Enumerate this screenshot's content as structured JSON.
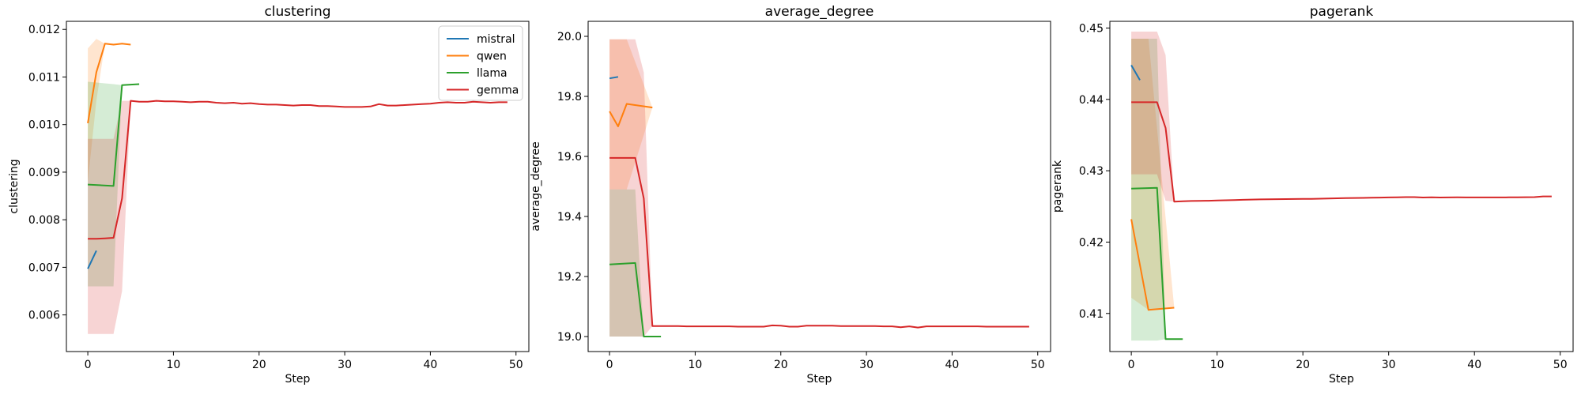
{
  "chart_data": [
    {
      "type": "line",
      "title": "clustering",
      "xlabel": "Step",
      "ylabel": "clustering",
      "xlim": [
        -2.5,
        51.5
      ],
      "ylim": [
        0.00523,
        0.01217
      ],
      "xticks": [
        0,
        10,
        20,
        30,
        40,
        50
      ],
      "xtick_labels": [
        "0",
        "10",
        "20",
        "30",
        "40",
        "50"
      ],
      "yticks": [
        0.006,
        0.007,
        0.008,
        0.009,
        0.01,
        0.011,
        0.012
      ],
      "ytick_labels": [
        "0.006",
        "0.007",
        "0.008",
        "0.009",
        "0.010",
        "0.011",
        "0.012"
      ],
      "legend": "upper right",
      "series": [
        {
          "name": "mistral",
          "color": "#1f77b4",
          "x": [
            0,
            1
          ],
          "y": [
            0.00697,
            0.00735
          ],
          "band_upper": [],
          "band_lower": []
        },
        {
          "name": "qwen",
          "color": "#ff7f0e",
          "x": [
            0,
            1,
            2,
            3,
            4,
            5
          ],
          "y": [
            0.01003,
            0.0111,
            0.0117,
            0.01168,
            0.0117,
            0.01168
          ],
          "band_upper": [
            0.0116,
            0.0118,
            0.0117,
            0.0117,
            0.0117,
            0.01168
          ],
          "band_lower": [
            0.0088,
            0.0105,
            0.0117,
            0.01168,
            0.0117,
            0.01168
          ]
        },
        {
          "name": "llama",
          "color": "#2ca02c",
          "x": [
            0,
            3,
            4,
            6
          ],
          "y": [
            0.00874,
            0.00871,
            0.01083,
            0.01085
          ],
          "band_upper": [
            0.0109,
            0.01085,
            0.01083,
            0.01085
          ],
          "band_lower": [
            0.0066,
            0.0066,
            0.01083,
            0.01085
          ]
        },
        {
          "name": "gemma",
          "color": "#d62728",
          "x": [
            0,
            1,
            2,
            3,
            4,
            5,
            6,
            7,
            8,
            9,
            10,
            11,
            12,
            13,
            14,
            15,
            16,
            17,
            18,
            19,
            20,
            21,
            22,
            23,
            24,
            25,
            26,
            27,
            28,
            29,
            30,
            31,
            32,
            33,
            34,
            35,
            36,
            37,
            38,
            39,
            40,
            41,
            42,
            43,
            44,
            45,
            46,
            47,
            48,
            49
          ],
          "y": [
            0.0076,
            0.0076,
            0.00761,
            0.00762,
            0.00845,
            0.0105,
            0.01048,
            0.01048,
            0.0105,
            0.01049,
            0.01049,
            0.01048,
            0.01047,
            0.01048,
            0.01048,
            0.01046,
            0.01045,
            0.01046,
            0.01044,
            0.01045,
            0.01043,
            0.01042,
            0.01042,
            0.01041,
            0.0104,
            0.01041,
            0.01041,
            0.01039,
            0.01039,
            0.01038,
            0.01037,
            0.01037,
            0.01037,
            0.01038,
            0.01043,
            0.0104,
            0.0104,
            0.01041,
            0.01042,
            0.01043,
            0.01044,
            0.01046,
            0.01047,
            0.01046,
            0.01046,
            0.01048,
            0.01047,
            0.01046,
            0.01047,
            0.01047
          ],
          "band_upper": [
            0.0097,
            0.0097,
            0.0097,
            0.0097,
            0.0105,
            0.0105
          ],
          "band_lower": [
            0.0056,
            0.0056,
            0.0056,
            0.0056,
            0.0065,
            0.0105
          ]
        }
      ]
    },
    {
      "type": "line",
      "title": "average_degree",
      "xlabel": "Step",
      "ylabel": "average_degree",
      "xlim": [
        -2.5,
        51.5
      ],
      "ylim": [
        18.95,
        20.05
      ],
      "xticks": [
        0,
        10,
        20,
        30,
        40,
        50
      ],
      "xtick_labels": [
        "0",
        "10",
        "20",
        "30",
        "40",
        "50"
      ],
      "yticks": [
        19.0,
        19.2,
        19.4,
        19.6,
        19.8,
        20.0
      ],
      "ytick_labels": [
        "19.0",
        "19.2",
        "19.4",
        "19.6",
        "19.8",
        "20.0"
      ],
      "series": [
        {
          "name": "mistral",
          "color": "#1f77b4",
          "x": [
            0,
            1
          ],
          "y": [
            19.86,
            19.865
          ],
          "band_upper": [],
          "band_lower": []
        },
        {
          "name": "qwen",
          "color": "#ff7f0e",
          "x": [
            0,
            1,
            2,
            5
          ],
          "y": [
            19.75,
            19.7,
            19.775,
            19.763
          ],
          "band_upper": [
            19.99,
            19.99,
            19.99,
            19.763
          ],
          "band_lower": [
            19.49,
            19.49,
            19.49,
            19.763
          ]
        },
        {
          "name": "llama",
          "color": "#2ca02c",
          "x": [
            0,
            3,
            4,
            6
          ],
          "y": [
            19.24,
            19.245,
            19.0,
            19.0
          ],
          "band_upper": [
            19.49,
            19.49,
            19.0,
            19.0
          ],
          "band_lower": [
            19.0,
            19.0,
            19.0,
            19.0
          ]
        },
        {
          "name": "gemma",
          "color": "#d62728",
          "x": [
            0,
            1,
            2,
            3,
            4,
            5,
            6,
            7,
            8,
            9,
            10,
            11,
            12,
            13,
            14,
            15,
            16,
            17,
            18,
            19,
            20,
            21,
            22,
            23,
            24,
            25,
            26,
            27,
            28,
            29,
            30,
            31,
            32,
            33,
            34,
            35,
            36,
            37,
            38,
            39,
            40,
            41,
            42,
            43,
            44,
            45,
            46,
            47,
            48,
            49
          ],
          "y": [
            19.595,
            19.595,
            19.595,
            19.595,
            19.46,
            19.035,
            19.035,
            19.035,
            19.035,
            19.034,
            19.034,
            19.034,
            19.034,
            19.034,
            19.034,
            19.033,
            19.033,
            19.033,
            19.033,
            19.037,
            19.036,
            19.033,
            19.033,
            19.036,
            19.036,
            19.036,
            19.036,
            19.035,
            19.035,
            19.035,
            19.035,
            19.035,
            19.034,
            19.034,
            19.031,
            19.034,
            19.03,
            19.034,
            19.034,
            19.034,
            19.034,
            19.034,
            19.034,
            19.034,
            19.033,
            19.033,
            19.033,
            19.033,
            19.033,
            19.033
          ],
          "band_upper": [
            19.99,
            19.99,
            19.99,
            19.99,
            19.88,
            19.035
          ],
          "band_lower": [
            19.0,
            19.0,
            19.0,
            19.0,
            19.0,
            19.035
          ]
        }
      ]
    },
    {
      "type": "line",
      "title": "pagerank",
      "xlabel": "Step",
      "ylabel": "pagerank",
      "xlim": [
        -2.5,
        51.5
      ],
      "ylim": [
        0.40466,
        0.45094
      ],
      "xticks": [
        0,
        10,
        20,
        30,
        40,
        50
      ],
      "xtick_labels": [
        "0",
        "10",
        "20",
        "30",
        "40",
        "50"
      ],
      "yticks": [
        0.41,
        0.42,
        0.43,
        0.44,
        0.45
      ],
      "ytick_labels": [
        "0.41",
        "0.42",
        "0.43",
        "0.44",
        "0.45"
      ],
      "series": [
        {
          "name": "mistral",
          "color": "#1f77b4",
          "x": [
            0,
            1
          ],
          "y": [
            0.4448,
            0.4427
          ],
          "band_upper": [],
          "band_lower": []
        },
        {
          "name": "qwen",
          "color": "#ff7f0e",
          "x": [
            0,
            2,
            5
          ],
          "y": [
            0.4232,
            0.4105,
            0.4108
          ],
          "band_upper": [
            0.4485,
            0.4485,
            0.4108
          ],
          "band_lower": [
            0.4122,
            0.4105,
            0.4108
          ]
        },
        {
          "name": "llama",
          "color": "#2ca02c",
          "x": [
            0,
            3,
            4,
            6
          ],
          "y": [
            0.4275,
            0.4276,
            0.4064,
            0.4064
          ],
          "band_upper": [
            0.4485,
            0.4485,
            0.4064,
            0.4064
          ],
          "band_lower": [
            0.4062,
            0.4062,
            0.4064,
            0.4064
          ]
        },
        {
          "name": "gemma",
          "color": "#d62728",
          "x": [
            0,
            1,
            2,
            3,
            4,
            5,
            6,
            7,
            8,
            9,
            10,
            11,
            12,
            13,
            14,
            15,
            16,
            17,
            18,
            19,
            20,
            21,
            22,
            23,
            24,
            25,
            26,
            27,
            28,
            29,
            30,
            31,
            32,
            33,
            34,
            35,
            36,
            37,
            38,
            39,
            40,
            41,
            42,
            43,
            44,
            45,
            46,
            47,
            48,
            49
          ],
          "y": [
            0.4396,
            0.4396,
            0.4396,
            0.4396,
            0.436,
            0.42567,
            0.42572,
            0.42576,
            0.42578,
            0.4258,
            0.42583,
            0.42586,
            0.4259,
            0.42593,
            0.42596,
            0.42598,
            0.426,
            0.42602,
            0.42603,
            0.42604,
            0.42606,
            0.42606,
            0.42608,
            0.42611,
            0.42614,
            0.42616,
            0.42618,
            0.4262,
            0.42622,
            0.42624,
            0.42626,
            0.42628,
            0.4263,
            0.4263,
            0.42625,
            0.42628,
            0.42625,
            0.42626,
            0.42627,
            0.42626,
            0.42626,
            0.42626,
            0.42626,
            0.42626,
            0.42627,
            0.42628,
            0.42629,
            0.4263,
            0.4264,
            0.4264
          ],
          "band_upper": [
            0.4495,
            0.4495,
            0.4495,
            0.4495,
            0.4462,
            0.42567
          ],
          "band_lower": [
            0.4295,
            0.4295,
            0.4295,
            0.4295,
            0.4258,
            0.42567
          ]
        }
      ]
    }
  ]
}
